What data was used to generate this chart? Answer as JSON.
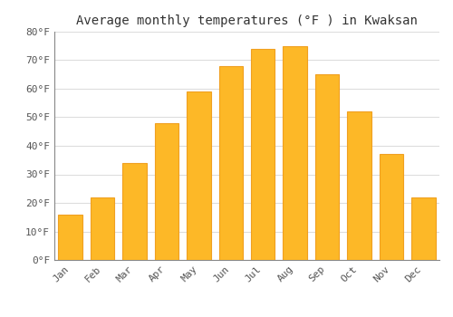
{
  "title": "Average monthly temperatures (°F ) in Kwaksan",
  "months": [
    "Jan",
    "Feb",
    "Mar",
    "Apr",
    "May",
    "Jun",
    "Jul",
    "Aug",
    "Sep",
    "Oct",
    "Nov",
    "Dec"
  ],
  "values": [
    16,
    22,
    34,
    48,
    59,
    68,
    74,
    75,
    65,
    52,
    37,
    22
  ],
  "bar_color": "#FDB827",
  "bar_edge_color": "#F0A020",
  "background_color": "#FFFFFF",
  "grid_color": "#DDDDDD",
  "ylim": [
    0,
    80
  ],
  "yticks": [
    0,
    10,
    20,
    30,
    40,
    50,
    60,
    70,
    80
  ],
  "ytick_labels": [
    "0°F",
    "10°F",
    "20°F",
    "30°F",
    "40°F",
    "50°F",
    "60°F",
    "70°F",
    "80°F"
  ],
  "title_fontsize": 10,
  "tick_fontsize": 8
}
